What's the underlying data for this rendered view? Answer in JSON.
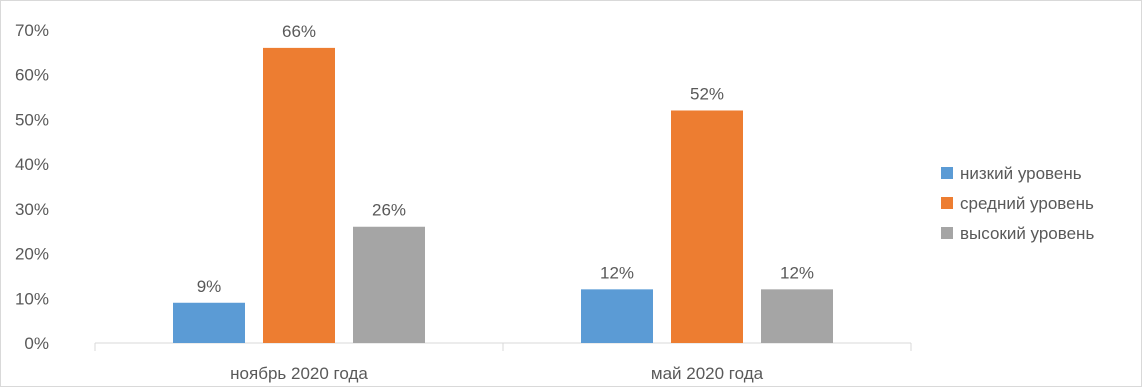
{
  "chart_data": {
    "type": "bar",
    "title": "",
    "xlabel": "",
    "ylabel": "",
    "categories": [
      "ноябрь 2020 года",
      "май 2020 года"
    ],
    "series": [
      {
        "name": "низкий уровень",
        "values": [
          9,
          12
        ],
        "labels": [
          "9%",
          "12%"
        ],
        "color": "#5b9bd5"
      },
      {
        "name": "средний уровень",
        "values": [
          66,
          52
        ],
        "labels": [
          "66%",
          "52%"
        ],
        "color": "#ed7d31"
      },
      {
        "name": "высокий уровень",
        "values": [
          26,
          12
        ],
        "labels": [
          "26%",
          "12%"
        ],
        "color": "#a5a5a5"
      }
    ],
    "y_ticks": [
      0,
      10,
      20,
      30,
      40,
      50,
      60,
      70
    ],
    "y_tick_labels": [
      "0%",
      "10%",
      "20%",
      "30%",
      "40%",
      "50%",
      "60%",
      "70%"
    ],
    "ylim": [
      0,
      70
    ],
    "grid": false,
    "legend_position": "right"
  }
}
